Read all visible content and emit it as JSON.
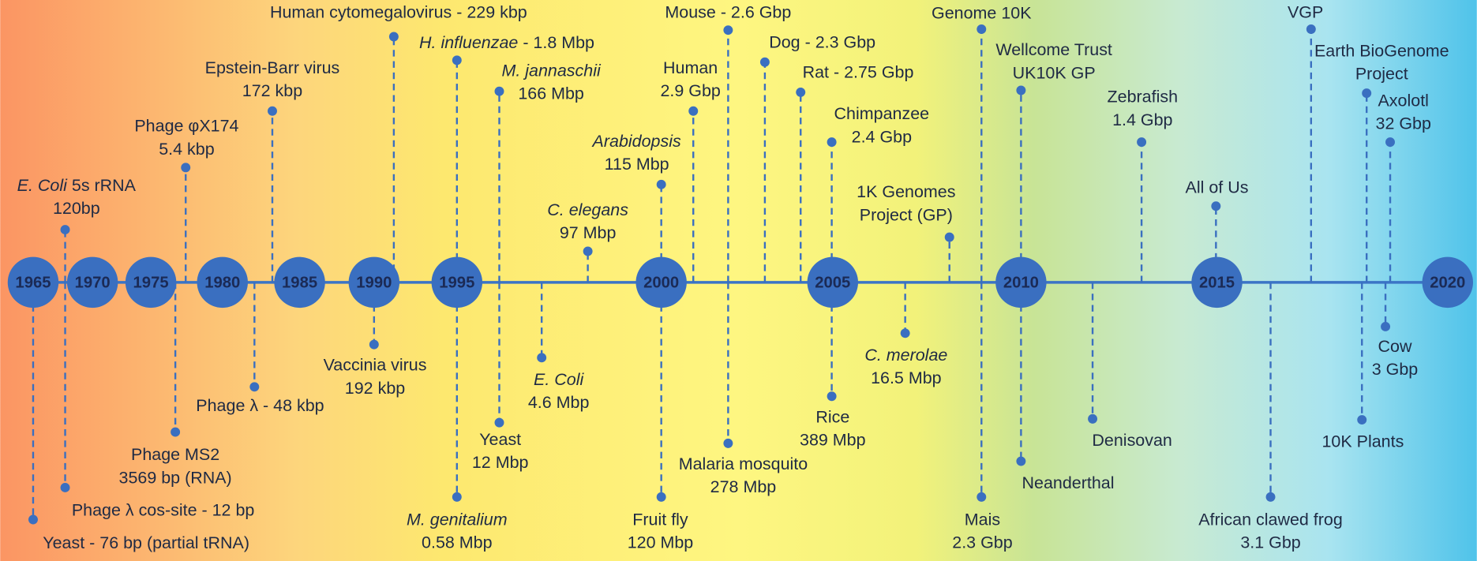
{
  "years": [
    "1965",
    "1970",
    "1975",
    "1980",
    "1985",
    "1990",
    "1995",
    "2000",
    "2005",
    "2010",
    "2015",
    "2020"
  ],
  "events": [
    {
      "lines": [
        "Yeast - 76 bp (partial tRNA)"
      ]
    },
    {
      "lines": [
        [
          {
            "text": "E. Coli",
            "italic": true
          },
          " 5s rRNA"
        ],
        "120bp"
      ]
    },
    {
      "lines": [
        "Phage λ cos-site - 12 bp"
      ]
    },
    {
      "lines": [
        "Phage φX174",
        "5.4 kbp"
      ]
    },
    {
      "lines": [
        "Phage MS2",
        "3569 bp (RNA)"
      ]
    },
    {
      "lines": [
        "Epstein-Barr virus",
        "172 kbp"
      ]
    },
    {
      "lines": [
        "Phage λ - 48 kbp"
      ]
    },
    {
      "lines": [
        "Human cytomegalovirus - 229 kbp"
      ]
    },
    {
      "lines": [
        "Vaccinia virus",
        "192 kbp"
      ]
    },
    {
      "lines": [
        [
          {
            "text": "H. influenzae",
            "italic": true
          },
          " - 1.8 Mbp"
        ]
      ]
    },
    {
      "lines": [
        [
          {
            "text": "M. genitalium",
            "italic": true
          }
        ],
        "0.58 Mbp"
      ]
    },
    {
      "lines": [
        [
          {
            "text": "M. jannaschii",
            "italic": true
          }
        ],
        "166 Mbp"
      ]
    },
    {
      "lines": [
        "Yeast",
        "12 Mbp"
      ]
    },
    {
      "lines": [
        [
          {
            "text": "E. Coli",
            "italic": true
          }
        ],
        "4.6 Mbp"
      ]
    },
    {
      "lines": [
        [
          {
            "text": "C. elegans",
            "italic": true
          }
        ],
        "97 Mbp"
      ]
    },
    {
      "lines": [
        [
          {
            "text": "Arabidopsis",
            "italic": true
          }
        ],
        "115 Mbp"
      ]
    },
    {
      "lines": [
        "Fruit fly",
        "120 Mbp"
      ]
    },
    {
      "lines": [
        "Human",
        "2.9 Gbp"
      ]
    },
    {
      "lines": [
        "Mouse - 2.6 Gbp"
      ]
    },
    {
      "lines": [
        "Malaria mosquito",
        "278 Mbp"
      ]
    },
    {
      "lines": [
        "Dog - 2.3 Gbp"
      ]
    },
    {
      "lines": [
        "Rat - 2.75 Gbp"
      ]
    },
    {
      "lines": [
        "Chimpanzee",
        "2.4 Gbp"
      ]
    },
    {
      "lines": [
        "Rice",
        "389 Mbp"
      ]
    },
    {
      "lines": [
        "1K Genomes",
        "Project (GP)"
      ]
    },
    {
      "lines": [
        [
          {
            "text": "C. merolae",
            "italic": true
          }
        ],
        "16.5 Mbp"
      ]
    },
    {
      "lines": [
        "Genome 10K"
      ]
    },
    {
      "lines": [
        "Mais",
        "2.3 Gbp"
      ]
    },
    {
      "lines": [
        "Wellcome Trust",
        "UK10K GP"
      ]
    },
    {
      "lines": [
        "Neanderthal"
      ]
    },
    {
      "lines": [
        "Zebrafish",
        "1.4 Gbp"
      ]
    },
    {
      "lines": [
        "Denisovan"
      ]
    },
    {
      "lines": [
        "All of Us"
      ]
    },
    {
      "lines": [
        "African clawed frog",
        "3.1 Gbp"
      ]
    },
    {
      "lines": [
        "VGP"
      ]
    },
    {
      "lines": [
        "Earth BioGenome",
        "Project"
      ]
    },
    {
      "lines": [
        "Axolotl",
        "32 Gbp"
      ]
    },
    {
      "lines": [
        "Cow",
        "3 Gbp"
      ]
    },
    {
      "lines": [
        "10K Plants"
      ]
    }
  ]
}
